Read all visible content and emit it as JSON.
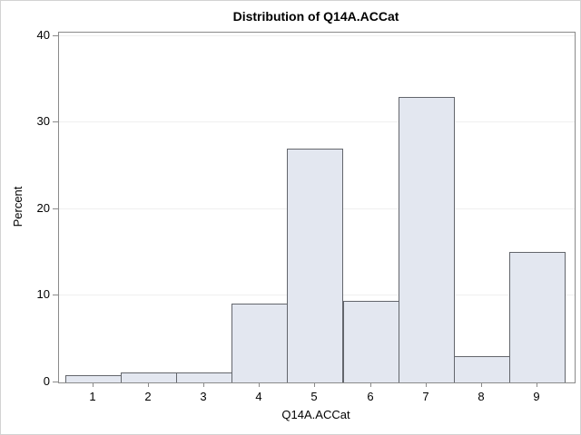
{
  "chart_data": {
    "type": "bar",
    "subtype": "histogram",
    "title": "Distribution of Q14A.ACCat",
    "xlabel": "Q14A.ACCat",
    "ylabel": "Percent",
    "categories": [
      "1",
      "2",
      "3",
      "4",
      "5",
      "6",
      "7",
      "8",
      "9"
    ],
    "values": [
      0.8,
      1.2,
      1.2,
      9.1,
      27,
      9.4,
      33,
      3,
      15.1
    ],
    "yticks": [
      0,
      10,
      20,
      30,
      40
    ],
    "ylim": [
      0,
      40.4
    ],
    "xlim": [
      0.4,
      9.7
    ],
    "grid": "horizontal",
    "legend": "none"
  },
  "colors": {
    "bar_fill": "#e3e7f0",
    "bar_border": "#63666c",
    "plot_frame": "#8a8a8a",
    "gridline": "#efefef",
    "text": "#000000",
    "background": "#ffffff",
    "outer_border": "#d3d3d3"
  }
}
